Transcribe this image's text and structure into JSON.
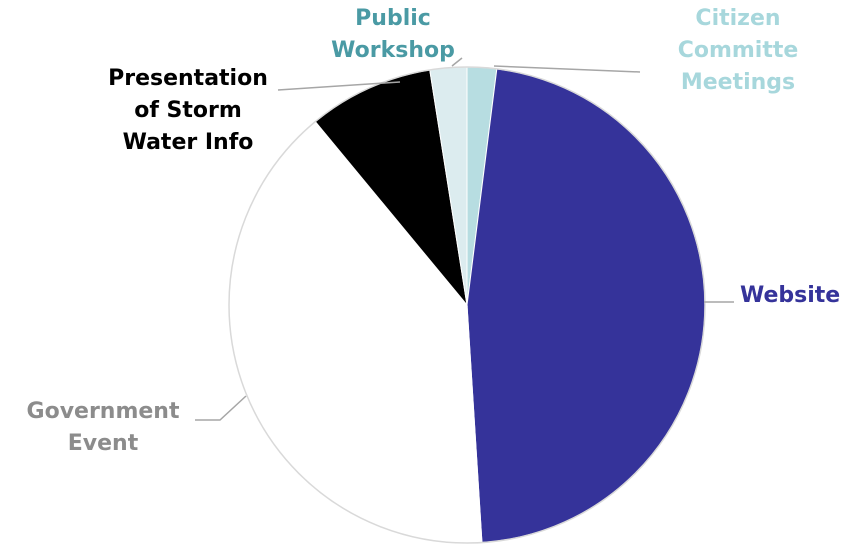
{
  "chart_data": {
    "type": "pie",
    "title": "",
    "slices": [
      {
        "label": "Citizen Committe Meetings",
        "lines": [
          "Citizen",
          "Committe",
          "Meetings"
        ],
        "value": 2,
        "color": "#b7dde1",
        "label_color": "#a7d7dc"
      },
      {
        "label": "Website",
        "lines": [
          "Website"
        ],
        "value": 47,
        "color": "#35339a",
        "label_color": "#35339a"
      },
      {
        "label": "Government Event",
        "lines": [
          "Government",
          "Event"
        ],
        "value": 40,
        "color": "#ffffff",
        "label_color": "#8c8c8c"
      },
      {
        "label": "Presentation of Storm Water Info",
        "lines": [
          "Presentation",
          "of Storm",
          "Water Info"
        ],
        "value": 8.5,
        "color": "#000000",
        "label_color": "#000000"
      },
      {
        "label": "Public Workshop",
        "lines": [
          "Public",
          "Workshop"
        ],
        "value": 2.5,
        "color": "#dcecef",
        "label_color": "#4a9aa4"
      }
    ],
    "legend": "none"
  }
}
